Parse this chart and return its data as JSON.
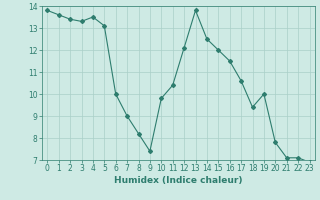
{
  "x": [
    0,
    1,
    2,
    3,
    4,
    5,
    6,
    7,
    8,
    9,
    10,
    11,
    12,
    13,
    14,
    15,
    16,
    17,
    18,
    19,
    20,
    21,
    22,
    23
  ],
  "y": [
    13.8,
    13.6,
    13.4,
    13.3,
    13.5,
    13.1,
    10.0,
    9.0,
    8.2,
    7.4,
    9.8,
    10.4,
    12.1,
    13.8,
    12.5,
    12.0,
    11.5,
    10.6,
    9.4,
    10.0,
    7.8,
    7.1,
    7.1,
    6.9
  ],
  "line_color": "#2e7d6e",
  "marker": "D",
  "marker_size": 2,
  "bg_color": "#ceeae4",
  "grid_color": "#aacfc8",
  "xlabel": "Humidex (Indice chaleur)",
  "xlim": [
    -0.5,
    23.5
  ],
  "ylim": [
    7,
    14
  ],
  "yticks": [
    7,
    8,
    9,
    10,
    11,
    12,
    13,
    14
  ],
  "xticks": [
    0,
    1,
    2,
    3,
    4,
    5,
    6,
    7,
    8,
    9,
    10,
    11,
    12,
    13,
    14,
    15,
    16,
    17,
    18,
    19,
    20,
    21,
    22,
    23
  ],
  "tick_label_fontsize": 5.5,
  "xlabel_fontsize": 6.5
}
